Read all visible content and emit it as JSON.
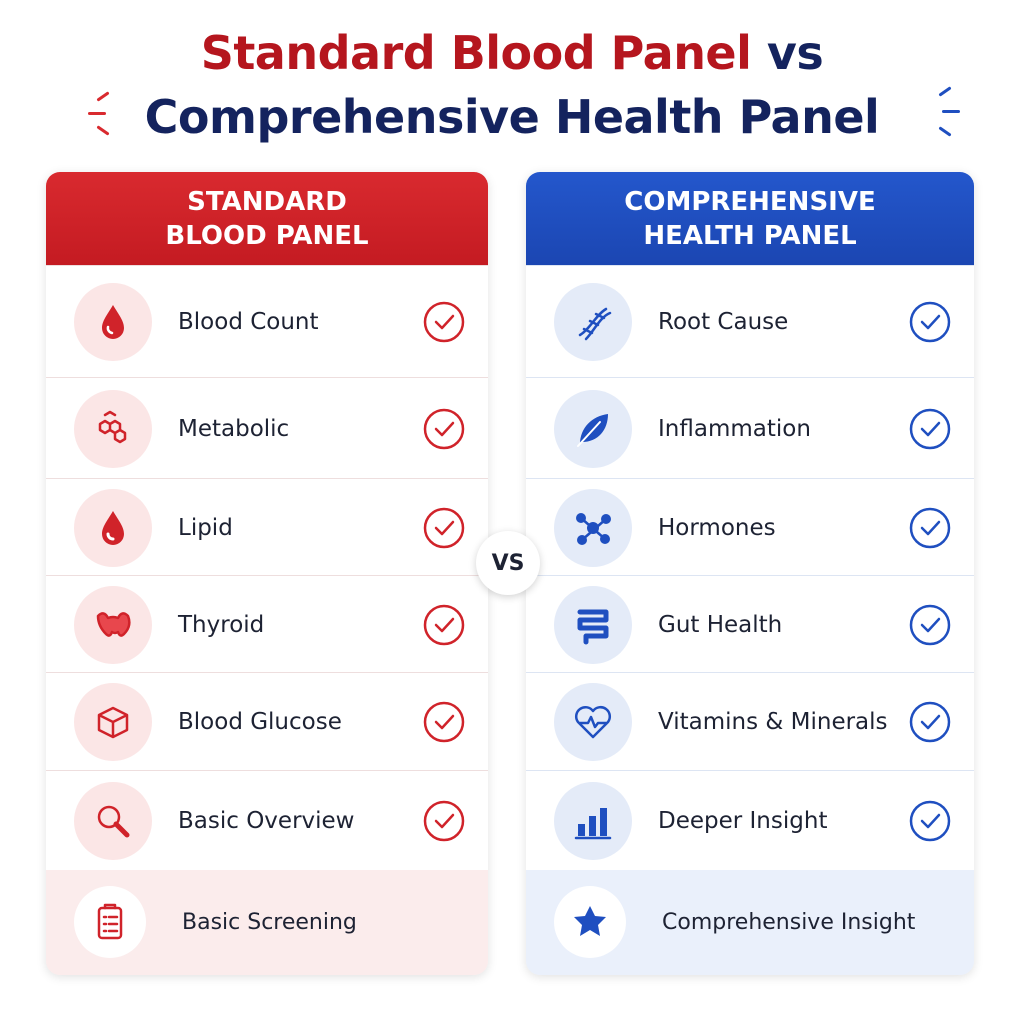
{
  "title": {
    "line1": "Standard Blood Panel",
    "line1_vs": "vs",
    "line2": "Comprehensive Health Panel"
  },
  "panels": [
    {
      "header": [
        "STANDARD",
        "BLOOD PANEL"
      ],
      "items": [
        "Blood Count",
        "Metabolic",
        "Lipid",
        "Thyroid",
        "Blood Glucose",
        "Basic Overview"
      ],
      "footer": "Basic Screening"
    },
    {
      "header": [
        "COMPREHENSIVE",
        "HEALTH PANEL"
      ],
      "items": [
        "Root Cause",
        "Inflammation",
        "Hormones",
        "Gut Health",
        "Vitamins & Minerals",
        "Deeper Insight"
      ],
      "footer": "Comprehensive Insight"
    }
  ],
  "vs_badge": "VS"
}
